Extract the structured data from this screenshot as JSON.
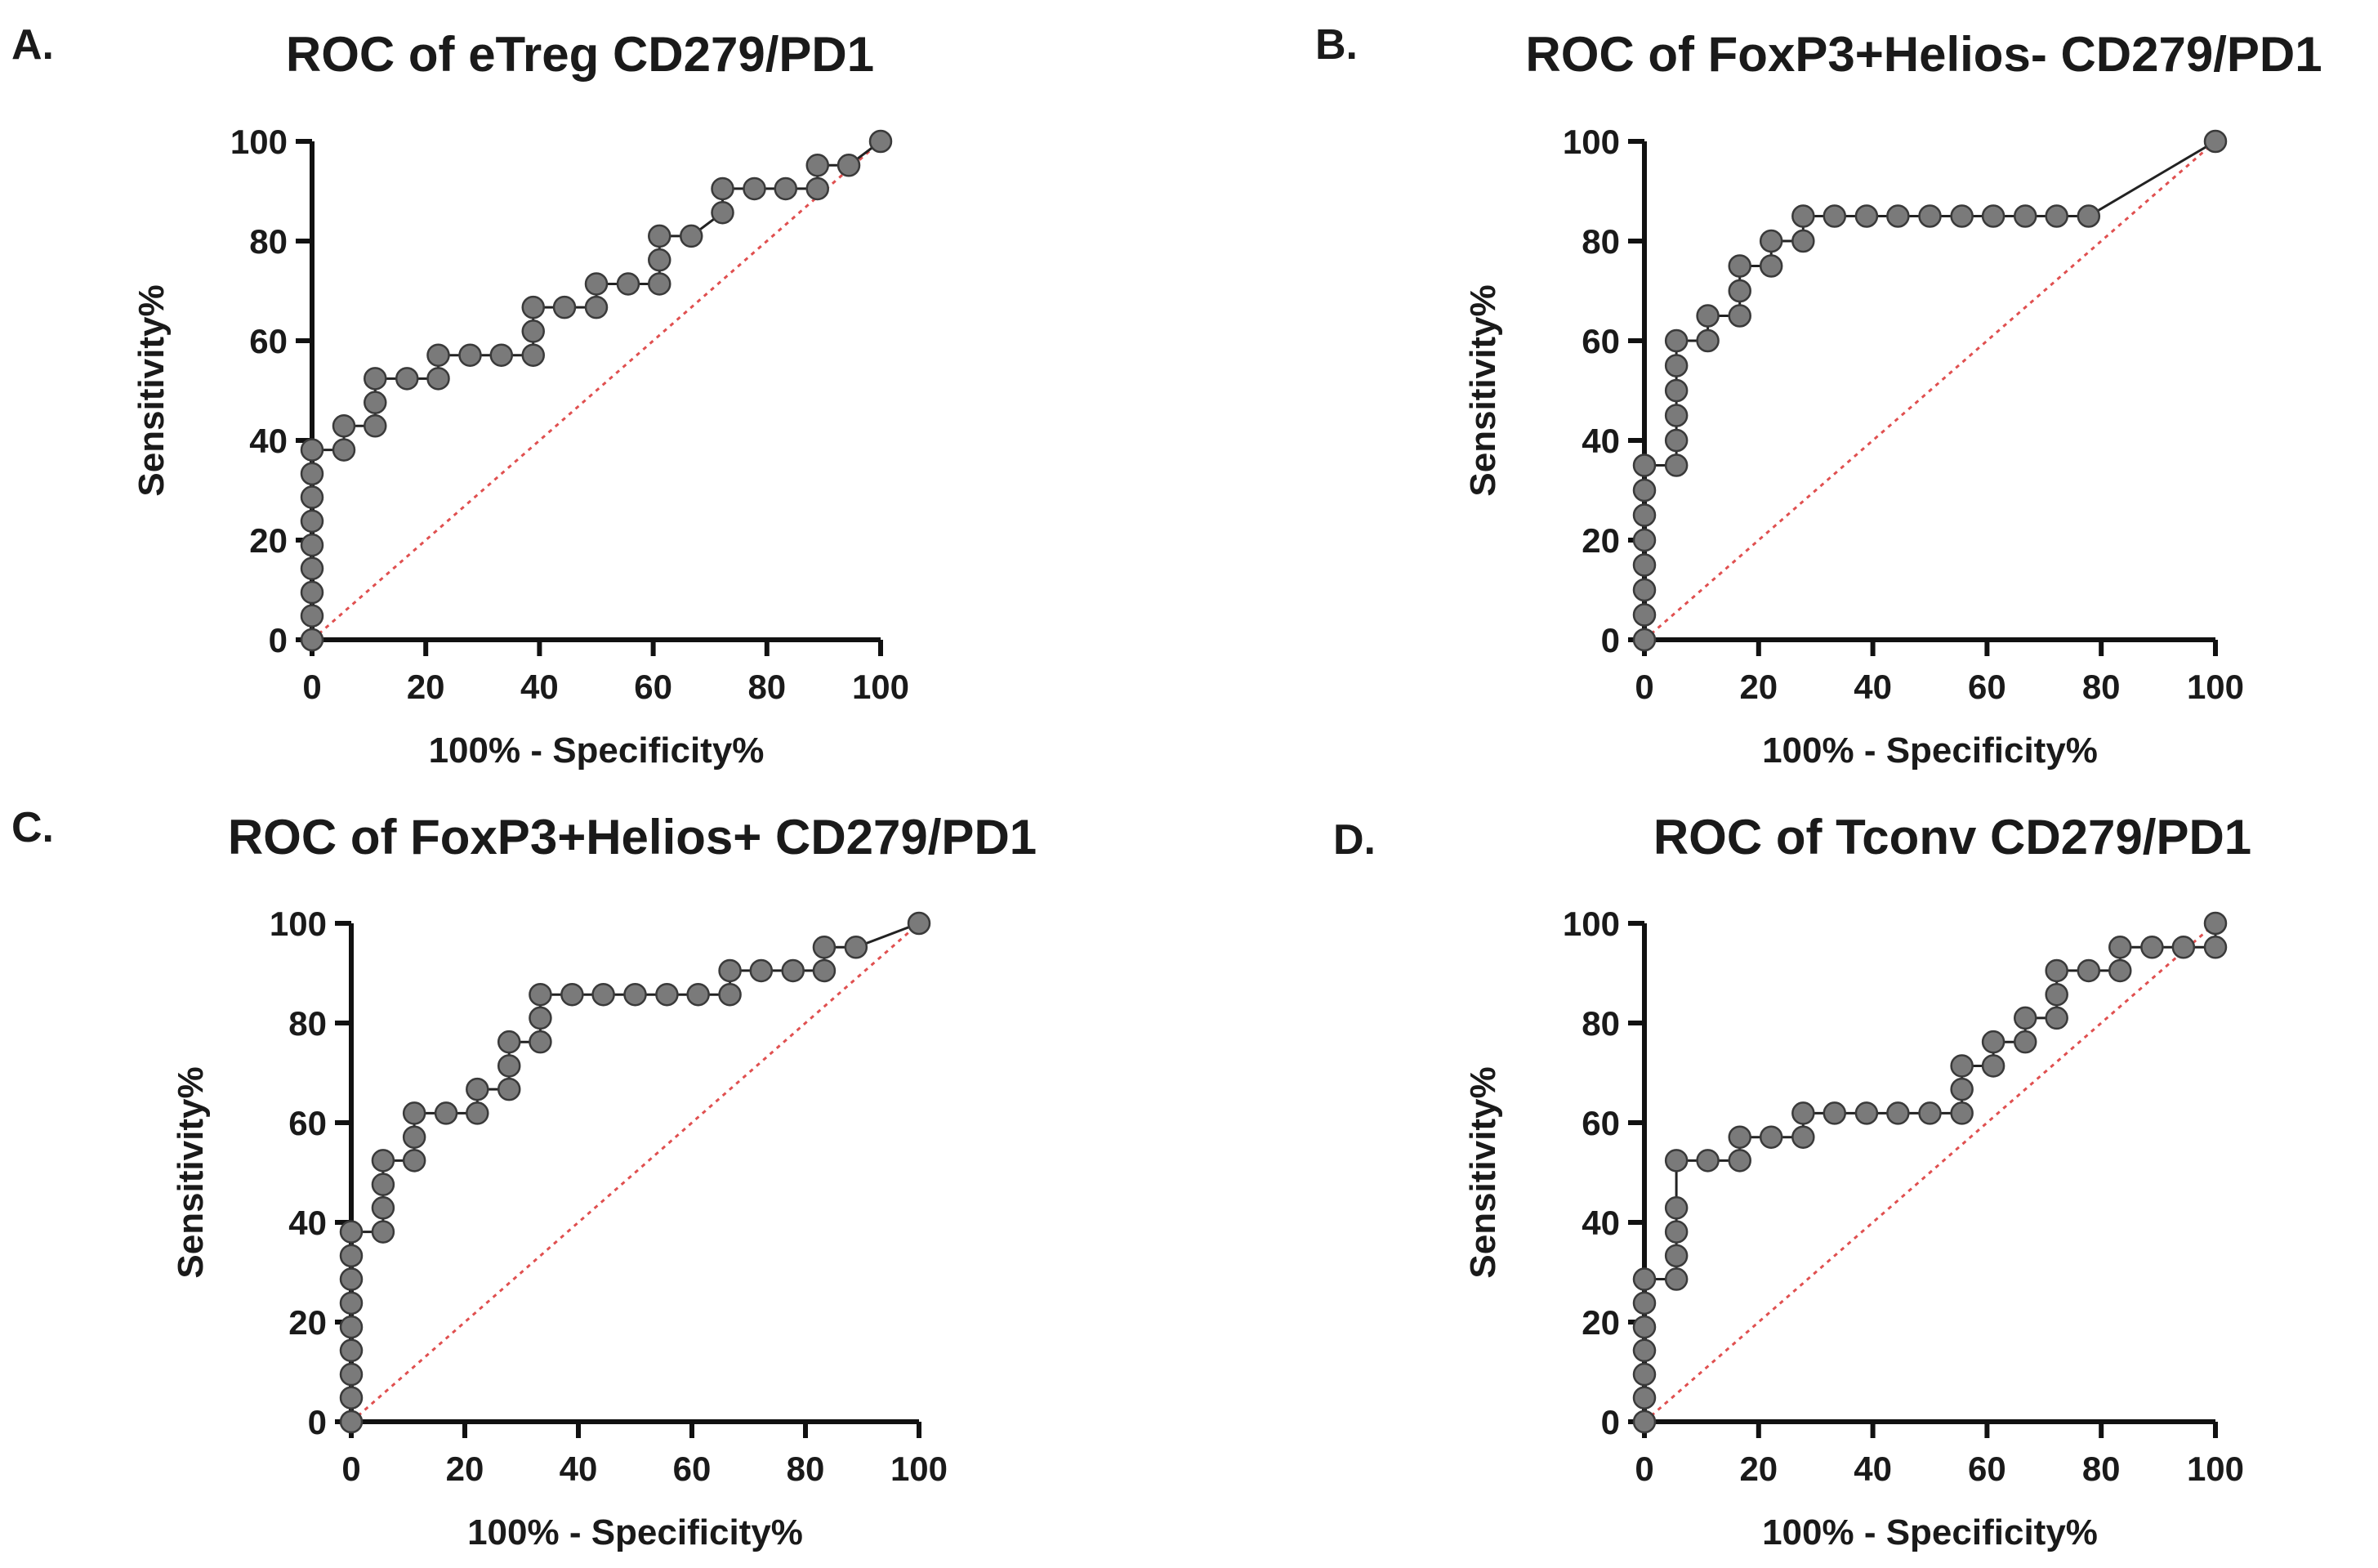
{
  "chart_data": [
    {
      "type": "line",
      "panel": "A.",
      "title": "ROC of eTreg CD279/PD1",
      "xlabel": "100% - Specificity%",
      "ylabel": "Sensitivity%",
      "xlim": [
        0,
        100
      ],
      "ylim": [
        0,
        100
      ],
      "xticks": [
        0,
        20,
        40,
        60,
        80,
        100
      ],
      "yticks": [
        0,
        20,
        40,
        60,
        80,
        100
      ],
      "reference_line": {
        "name": "chance",
        "x": [
          0,
          100
        ],
        "y": [
          0,
          100
        ],
        "color": "#e05050"
      },
      "series": [
        {
          "name": "ROC curve",
          "x": [
            0,
            0,
            0,
            0,
            0,
            0,
            0,
            0,
            0,
            5.6,
            5.6,
            11.1,
            11.1,
            11.1,
            16.7,
            22.2,
            22.2,
            27.8,
            33.3,
            38.9,
            38.9,
            38.9,
            44.4,
            50,
            50,
            55.6,
            61.1,
            61.1,
            61.1,
            66.7,
            72.2,
            72.2,
            77.8,
            83.3,
            88.9,
            88.9,
            94.4,
            100
          ],
          "y": [
            0,
            4.8,
            9.5,
            14.3,
            19,
            23.8,
            28.6,
            33.3,
            38.1,
            38.1,
            42.9,
            42.9,
            47.6,
            52.4,
            52.4,
            52.4,
            57.1,
            57.1,
            57.1,
            57.1,
            61.9,
            66.7,
            66.7,
            66.7,
            71.4,
            71.4,
            71.4,
            76.2,
            81,
            81,
            85.7,
            90.5,
            90.5,
            90.5,
            90.5,
            95.2,
            95.2,
            100
          ]
        }
      ]
    },
    {
      "type": "line",
      "panel": "B.",
      "title": "ROC of FoxP3+Helios- CD279/PD1",
      "xlabel": "100% - Specificity%",
      "ylabel": "Sensitivity%",
      "xlim": [
        0,
        100
      ],
      "ylim": [
        0,
        100
      ],
      "xticks": [
        0,
        20,
        40,
        60,
        80,
        100
      ],
      "yticks": [
        0,
        20,
        40,
        60,
        80,
        100
      ],
      "reference_line": {
        "name": "chance",
        "x": [
          0,
          100
        ],
        "y": [
          0,
          100
        ],
        "color": "#e05050"
      },
      "series": [
        {
          "name": "ROC curve",
          "x": [
            0,
            0,
            0,
            0,
            0,
            0,
            0,
            0,
            5.6,
            5.6,
            5.6,
            5.6,
            5.6,
            5.6,
            11.1,
            11.1,
            16.7,
            16.7,
            16.7,
            22.2,
            22.2,
            27.8,
            27.8,
            33.3,
            38.9,
            44.4,
            50,
            55.6,
            61.1,
            66.7,
            72.2,
            77.8,
            100
          ],
          "y": [
            0,
            5,
            10,
            15,
            20,
            25,
            30,
            35,
            35,
            40,
            45,
            50,
            55,
            60,
            60,
            65,
            65,
            70,
            75,
            75,
            80,
            80,
            85,
            85,
            85,
            85,
            85,
            85,
            85,
            85,
            85,
            85,
            100
          ]
        }
      ]
    },
    {
      "type": "line",
      "panel": "C.",
      "title": "ROC of FoxP3+Helios+ CD279/PD1",
      "xlabel": "100% - Specificity%",
      "ylabel": "Sensitivity%",
      "xlim": [
        0,
        100
      ],
      "ylim": [
        0,
        100
      ],
      "xticks": [
        0,
        20,
        40,
        60,
        80,
        100
      ],
      "yticks": [
        0,
        20,
        40,
        60,
        80,
        100
      ],
      "reference_line": {
        "name": "chance",
        "x": [
          0,
          100
        ],
        "y": [
          0,
          100
        ],
        "color": "#e05050"
      },
      "series": [
        {
          "name": "ROC curve",
          "x": [
            0,
            0,
            0,
            0,
            0,
            0,
            0,
            0,
            0,
            5.6,
            5.6,
            5.6,
            5.6,
            11.1,
            11.1,
            11.1,
            16.7,
            22.2,
            22.2,
            27.8,
            27.8,
            27.8,
            33.3,
            33.3,
            33.3,
            38.9,
            44.4,
            50,
            55.6,
            61.1,
            66.7,
            66.7,
            72.2,
            77.8,
            83.3,
            83.3,
            88.9,
            100
          ],
          "y": [
            0,
            4.8,
            9.5,
            14.3,
            19,
            23.8,
            28.6,
            33.3,
            38.1,
            38.1,
            42.9,
            47.6,
            52.4,
            52.4,
            57.1,
            61.9,
            61.9,
            61.9,
            66.7,
            66.7,
            71.4,
            76.2,
            76.2,
            81,
            85.7,
            85.7,
            85.7,
            85.7,
            85.7,
            85.7,
            85.7,
            90.5,
            90.5,
            90.5,
            90.5,
            95.2,
            95.2,
            100
          ]
        }
      ]
    },
    {
      "type": "line",
      "panel": "D.",
      "title": "ROC of Tconv CD279/PD1",
      "xlabel": "100% - Specificity%",
      "ylabel": "Sensitivity%",
      "xlim": [
        0,
        100
      ],
      "ylim": [
        0,
        100
      ],
      "xticks": [
        0,
        20,
        40,
        60,
        80,
        100
      ],
      "yticks": [
        0,
        20,
        40,
        60,
        80,
        100
      ],
      "reference_line": {
        "name": "chance",
        "x": [
          0,
          100
        ],
        "y": [
          0,
          100
        ],
        "color": "#e05050"
      },
      "series": [
        {
          "name": "ROC curve",
          "x": [
            0,
            0,
            0,
            0,
            0,
            0,
            0,
            5.6,
            5.6,
            5.6,
            5.6,
            5.6,
            11.1,
            16.7,
            16.7,
            22.2,
            27.8,
            27.8,
            33.3,
            38.9,
            44.4,
            50,
            55.6,
            55.6,
            55.6,
            61.1,
            61.1,
            66.7,
            66.7,
            72.2,
            72.2,
            72.2,
            77.8,
            83.3,
            83.3,
            88.9,
            94.4,
            100,
            100
          ],
          "y": [
            0,
            4.8,
            9.5,
            14.3,
            19,
            23.8,
            28.6,
            28.6,
            33.3,
            38.1,
            42.9,
            52.4,
            52.4,
            52.4,
            57.1,
            57.1,
            57.1,
            61.9,
            61.9,
            61.9,
            61.9,
            61.9,
            61.9,
            66.7,
            71.4,
            71.4,
            76.2,
            76.2,
            81,
            81,
            85.7,
            90.5,
            90.5,
            90.5,
            95.2,
            95.2,
            95.2,
            95.2,
            100
          ]
        }
      ]
    }
  ]
}
